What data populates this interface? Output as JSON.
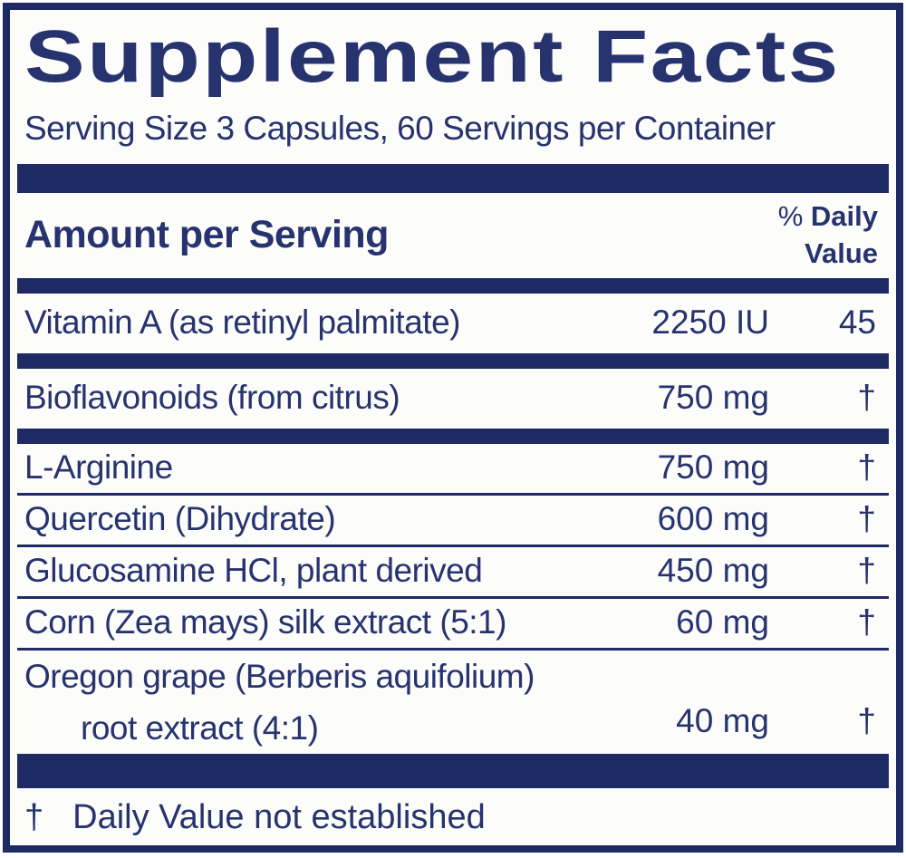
{
  "label": {
    "title": "Supplement Facts",
    "serving_info": "Serving Size 3 Capsules, 60 Servings per Container",
    "header": {
      "amount_per_serving": "Amount per Serving",
      "daily_value_percent_sign": "%",
      "daily_value_line1": "Daily",
      "daily_value_line2": "Value"
    },
    "ingredients": [
      {
        "name": "Vitamin A (as retinyl palmitate)",
        "amount": "2250 IU",
        "daily_value": "45",
        "divider_after": "bar"
      },
      {
        "name": "Bioflavonoids (from citrus)",
        "amount": "750 mg",
        "daily_value": "†",
        "divider_after": "bar"
      },
      {
        "name": "L-Arginine",
        "amount": "750 mg",
        "daily_value": "†",
        "divider_after": "rule"
      },
      {
        "name": "Quercetin (Dihydrate)",
        "amount": "600 mg",
        "daily_value": "†",
        "divider_after": "rule"
      },
      {
        "name": "Glucosamine HCl, plant derived",
        "amount": "450 mg",
        "daily_value": "†",
        "divider_after": "rule"
      },
      {
        "name": "Corn (Zea mays) silk extract (5:1)",
        "amount": "60 mg",
        "daily_value": "†",
        "divider_after": "rule"
      },
      {
        "name": "Oregon grape (Berberis aquifolium)",
        "name_line2": "root extract (4:1)",
        "amount": "40 mg",
        "daily_value": "†",
        "divider_after": "thick-bar"
      }
    ],
    "footnote": {
      "symbol": "†",
      "text": "Daily Value not established"
    },
    "colors": {
      "navy_bar": "#1e2a63",
      "text_navy": "#27336f",
      "background": "#fcfcfa"
    }
  }
}
